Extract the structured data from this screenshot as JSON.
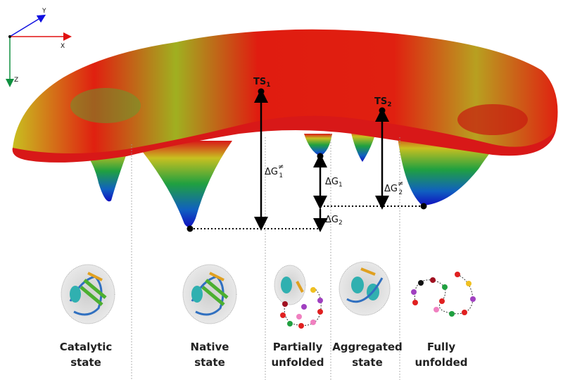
{
  "axes": {
    "x": "X",
    "y": "Y",
    "z": "Z"
  },
  "annotations": {
    "ts1": {
      "base": "TS",
      "sub": "1"
    },
    "ts2": {
      "base": "TS",
      "sub": "2"
    },
    "dg_ts1": {
      "base": "ΔG",
      "sup": "≠",
      "sub": "1"
    },
    "dg_ts2": {
      "base": "ΔG",
      "sup": "≠",
      "sub": "2"
    },
    "dg1": {
      "base": "ΔG",
      "sub": "1"
    },
    "dg2": {
      "base": "ΔG",
      "sub": "2"
    }
  },
  "states": [
    {
      "lines": [
        "Catalytic",
        "state"
      ]
    },
    {
      "lines": [
        "Native",
        "state"
      ]
    },
    {
      "lines": [
        "Partially",
        "unfolded"
      ]
    },
    {
      "lines": [
        "Aggregated",
        "state"
      ]
    },
    {
      "lines": [
        "Fully",
        "unfolded"
      ]
    }
  ]
}
